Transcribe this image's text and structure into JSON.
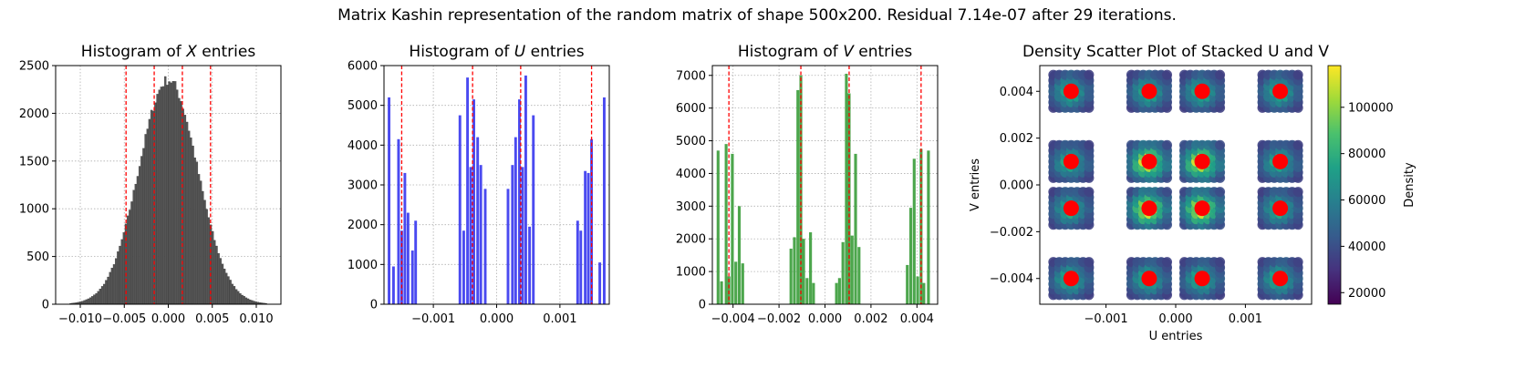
{
  "suptitle": "Matrix Kashin representation of the random matrix of shape 500x200. Residual 7.14e-07 after 29 iterations.",
  "chart_data": [
    {
      "type": "bar",
      "title_parts": [
        "Histogram of ",
        "X",
        " entries"
      ],
      "color": "#555555",
      "xlim": [
        -0.0128,
        0.0128
      ],
      "ylim": [
        0,
        2500
      ],
      "xticks": [
        -0.01,
        -0.005,
        0.0,
        0.005,
        0.01
      ],
      "xtick_labels": [
        "−0.010",
        "−0.005",
        "0.000",
        "0.005",
        "0.010"
      ],
      "yticks": [
        0,
        500,
        1000,
        1500,
        2000,
        2500
      ],
      "ytick_labels": [
        "0",
        "500",
        "1000",
        "1500",
        "2000",
        "2500"
      ],
      "gaussian": {
        "mean": 0.0,
        "std": 0.00333,
        "peak": 2350,
        "bins": 100,
        "range": [
          -0.0112,
          0.0112
        ]
      },
      "vlines": [
        -0.0048,
        -0.0016,
        0.0016,
        0.0048
      ],
      "grid": true
    },
    {
      "type": "bar",
      "title_parts": [
        "Histogram of ",
        "U",
        " entries"
      ],
      "color": "#4a4af0",
      "xlim": [
        -0.00178,
        0.00178
      ],
      "ylim": [
        0,
        6000
      ],
      "xticks": [
        -0.001,
        0.0,
        0.001
      ],
      "xtick_labels": [
        "−0.001",
        "0.000",
        "0.001"
      ],
      "yticks": [
        0,
        1000,
        2000,
        3000,
        4000,
        5000,
        6000
      ],
      "ytick_labels": [
        "0",
        "1000",
        "2000",
        "3000",
        "4000",
        "5000",
        "6000"
      ],
      "bar_width": 4.2e-05,
      "bars": [
        [
          -0.0017,
          5200
        ],
        [
          -0.00163,
          950
        ],
        [
          -0.00155,
          4150
        ],
        [
          -0.0015,
          1850
        ],
        [
          -0.00145,
          3300
        ],
        [
          -0.0014,
          2300
        ],
        [
          -0.00133,
          1350
        ],
        [
          -0.00128,
          2100
        ],
        [
          -0.00058,
          4750
        ],
        [
          -0.00052,
          1850
        ],
        [
          -0.00046,
          5700
        ],
        [
          -0.00041,
          3450
        ],
        [
          -0.00036,
          5150
        ],
        [
          -0.0003,
          4200
        ],
        [
          -0.00025,
          3500
        ],
        [
          -0.00018,
          2900
        ],
        [
          0.00018,
          2900
        ],
        [
          0.00025,
          3500
        ],
        [
          0.0003,
          4200
        ],
        [
          0.00036,
          5150
        ],
        [
          0.00041,
          3450
        ],
        [
          0.00046,
          5750
        ],
        [
          0.00052,
          1950
        ],
        [
          0.00058,
          4750
        ],
        [
          0.00128,
          2100
        ],
        [
          0.00133,
          1850
        ],
        [
          0.0014,
          3350
        ],
        [
          0.00145,
          3300
        ],
        [
          0.0015,
          4150
        ],
        [
          0.00163,
          1050
        ],
        [
          0.0017,
          5200
        ]
      ],
      "vlines": [
        -0.0015,
        -0.00038,
        0.00038,
        0.0015
      ],
      "grid": true
    },
    {
      "type": "bar",
      "title_parts": [
        "Histogram of ",
        "V",
        " entries"
      ],
      "color": "#4ca64c",
      "xlim": [
        -0.0049,
        0.0049
      ],
      "ylim": [
        0,
        7300
      ],
      "xticks": [
        -0.004,
        -0.002,
        0.0,
        0.002,
        0.004
      ],
      "xtick_labels": [
        "−0.004",
        "−0.002",
        "0.000",
        "0.002",
        "0.004"
      ],
      "yticks": [
        0,
        1000,
        2000,
        3000,
        4000,
        5000,
        6000,
        7000
      ],
      "ytick_labels": [
        "0",
        "1000",
        "2000",
        "3000",
        "4000",
        "5000",
        "6000",
        "7000"
      ],
      "bar_width": 0.000125,
      "bars": [
        [
          -0.00465,
          4700
        ],
        [
          -0.0045,
          700
        ],
        [
          -0.0043,
          4900
        ],
        [
          -0.00418,
          850
        ],
        [
          -0.00403,
          4600
        ],
        [
          -0.00388,
          1300
        ],
        [
          -0.00373,
          3000
        ],
        [
          -0.00358,
          1250
        ],
        [
          -0.00148,
          1700
        ],
        [
          -0.00133,
          2050
        ],
        [
          -0.00118,
          6550
        ],
        [
          -0.00105,
          7000
        ],
        [
          -0.00093,
          2000
        ],
        [
          -0.00078,
          800
        ],
        [
          -0.00063,
          2200
        ],
        [
          -0.0005,
          650
        ],
        [
          0.0005,
          650
        ],
        [
          0.00063,
          800
        ],
        [
          0.00078,
          1900
        ],
        [
          0.00093,
          7050
        ],
        [
          0.00105,
          6450
        ],
        [
          0.00118,
          2100
        ],
        [
          0.00133,
          4600
        ],
        [
          0.00148,
          1750
        ],
        [
          0.00358,
          1200
        ],
        [
          0.00373,
          2950
        ],
        [
          0.00388,
          4450
        ],
        [
          0.00403,
          850
        ],
        [
          0.00418,
          4750
        ],
        [
          0.0043,
          650
        ],
        [
          0.0045,
          4700
        ]
      ],
      "vlines": [
        -0.00418,
        -0.00105,
        0.00105,
        0.00418
      ],
      "grid": true
    },
    {
      "type": "heatmap",
      "title": "Density Scatter Plot of Stacked U and V",
      "xlabel": "U entries",
      "ylabel": "V entries",
      "xlim": [
        -0.00195,
        0.00195
      ],
      "ylim": [
        -0.0051,
        0.0051
      ],
      "xticks": [
        -0.001,
        0.0,
        0.001
      ],
      "xtick_labels": [
        "−0.001",
        "0.000",
        "0.001"
      ],
      "yticks": [
        -0.004,
        -0.002,
        0.0,
        0.002,
        0.004
      ],
      "ytick_labels": [
        "−0.004",
        "−0.002",
        "0.000",
        "0.002",
        "0.004"
      ],
      "cluster_x": [
        -0.0015,
        -0.00038,
        0.00038,
        0.0015
      ],
      "cluster_y": [
        0.004,
        0.001,
        -0.001,
        -0.004
      ],
      "cluster_half_width_x": 0.00032,
      "cluster_half_width_y": 0.00088,
      "colorbar": {
        "label": "Density",
        "range": [
          15000,
          118000
        ],
        "ticks": [
          20000,
          40000,
          60000,
          80000,
          100000
        ],
        "tick_labels": [
          "20000",
          "40000",
          "60000",
          "80000",
          "100000"
        ],
        "colormap": [
          "#440154",
          "#46327e",
          "#365c8d",
          "#277f8e",
          "#1fa187",
          "#4ac16d",
          "#a0da39",
          "#fde725"
        ]
      },
      "marker_color": "#ff0000"
    }
  ]
}
